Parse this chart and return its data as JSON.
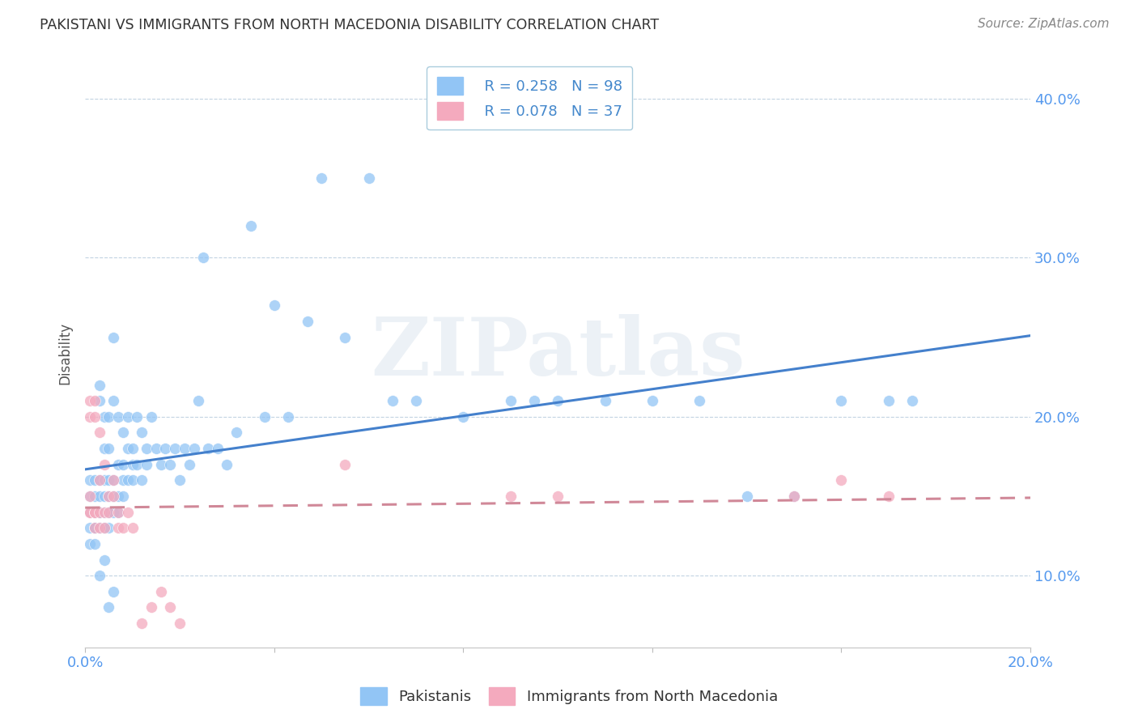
{
  "title": "PAKISTANI VS IMMIGRANTS FROM NORTH MACEDONIA DISABILITY CORRELATION CHART",
  "source": "Source: ZipAtlas.com",
  "ylabel": "Disability",
  "xlim": [
    0.0,
    0.2
  ],
  "ylim": [
    0.055,
    0.425
  ],
  "blue_color": "#92C5F5",
  "pink_color": "#F4AABE",
  "blue_line_color": "#4480CC",
  "pink_line_color": "#D08898",
  "legend_R1": "R = 0.258",
  "legend_N1": "N = 98",
  "legend_R2": "R = 0.078",
  "legend_N2": "N = 37",
  "watermark": "ZIPatlas",
  "pakistanis_x": [
    0.001,
    0.001,
    0.001,
    0.001,
    0.001,
    0.002,
    0.002,
    0.002,
    0.002,
    0.002,
    0.002,
    0.002,
    0.003,
    0.003,
    0.003,
    0.003,
    0.003,
    0.003,
    0.003,
    0.004,
    0.004,
    0.004,
    0.004,
    0.004,
    0.004,
    0.005,
    0.005,
    0.005,
    0.005,
    0.005,
    0.005,
    0.006,
    0.006,
    0.006,
    0.006,
    0.006,
    0.007,
    0.007,
    0.007,
    0.007,
    0.008,
    0.008,
    0.008,
    0.008,
    0.009,
    0.009,
    0.009,
    0.01,
    0.01,
    0.01,
    0.011,
    0.011,
    0.012,
    0.012,
    0.013,
    0.013,
    0.014,
    0.015,
    0.016,
    0.017,
    0.018,
    0.019,
    0.02,
    0.021,
    0.022,
    0.023,
    0.024,
    0.025,
    0.026,
    0.028,
    0.03,
    0.032,
    0.035,
    0.038,
    0.04,
    0.043,
    0.047,
    0.05,
    0.055,
    0.06,
    0.065,
    0.07,
    0.08,
    0.09,
    0.095,
    0.1,
    0.11,
    0.12,
    0.13,
    0.14,
    0.15,
    0.16,
    0.17,
    0.175,
    0.003,
    0.004,
    0.005,
    0.006
  ],
  "pakistanis_y": [
    0.14,
    0.15,
    0.13,
    0.16,
    0.12,
    0.14,
    0.13,
    0.15,
    0.16,
    0.14,
    0.13,
    0.12,
    0.14,
    0.15,
    0.21,
    0.13,
    0.16,
    0.14,
    0.22,
    0.14,
    0.15,
    0.2,
    0.18,
    0.13,
    0.16,
    0.14,
    0.2,
    0.15,
    0.16,
    0.13,
    0.18,
    0.21,
    0.25,
    0.15,
    0.16,
    0.14,
    0.2,
    0.15,
    0.17,
    0.14,
    0.19,
    0.17,
    0.15,
    0.16,
    0.18,
    0.2,
    0.16,
    0.17,
    0.18,
    0.16,
    0.2,
    0.17,
    0.19,
    0.16,
    0.18,
    0.17,
    0.2,
    0.18,
    0.17,
    0.18,
    0.17,
    0.18,
    0.16,
    0.18,
    0.17,
    0.18,
    0.21,
    0.3,
    0.18,
    0.18,
    0.17,
    0.19,
    0.32,
    0.2,
    0.27,
    0.2,
    0.26,
    0.35,
    0.25,
    0.35,
    0.21,
    0.21,
    0.2,
    0.21,
    0.21,
    0.21,
    0.21,
    0.21,
    0.21,
    0.15,
    0.15,
    0.21,
    0.21,
    0.21,
    0.1,
    0.11,
    0.08,
    0.09
  ],
  "macedonia_x": [
    0.001,
    0.001,
    0.001,
    0.001,
    0.001,
    0.002,
    0.002,
    0.002,
    0.002,
    0.002,
    0.003,
    0.003,
    0.003,
    0.003,
    0.004,
    0.004,
    0.004,
    0.005,
    0.005,
    0.006,
    0.006,
    0.007,
    0.007,
    0.008,
    0.009,
    0.01,
    0.012,
    0.014,
    0.016,
    0.018,
    0.02,
    0.055,
    0.09,
    0.1,
    0.15,
    0.16,
    0.17
  ],
  "macedonia_y": [
    0.14,
    0.21,
    0.15,
    0.2,
    0.14,
    0.21,
    0.2,
    0.14,
    0.13,
    0.14,
    0.19,
    0.14,
    0.13,
    0.16,
    0.14,
    0.13,
    0.17,
    0.15,
    0.14,
    0.15,
    0.16,
    0.14,
    0.13,
    0.13,
    0.14,
    0.13,
    0.07,
    0.08,
    0.09,
    0.08,
    0.07,
    0.17,
    0.15,
    0.15,
    0.15,
    0.16,
    0.15
  ]
}
